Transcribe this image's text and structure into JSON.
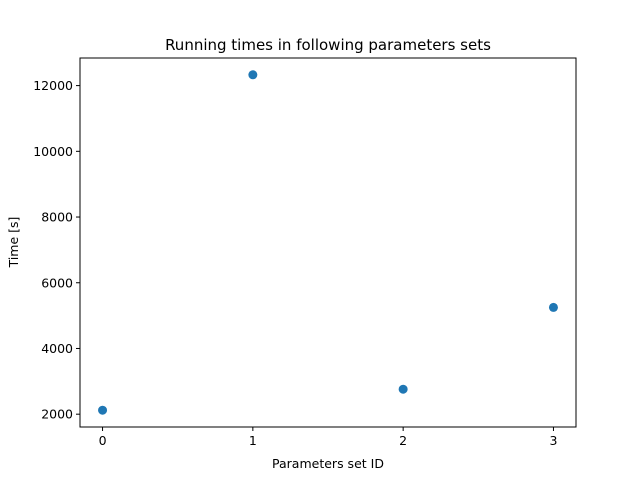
{
  "chart_data": {
    "type": "scatter",
    "title": "Running times in following parameters sets",
    "xlabel": "Parameters set ID",
    "ylabel": "Time [s]",
    "x": [
      0,
      1,
      2,
      3
    ],
    "y": [
      2120,
      12330,
      2760,
      5250
    ],
    "xlim": [
      -0.15,
      3.15
    ],
    "ylim": [
      1610,
      12840
    ],
    "xticks": [
      0,
      1,
      2,
      3
    ],
    "yticks": [
      2000,
      4000,
      6000,
      8000,
      10000,
      12000
    ],
    "grid": false,
    "marker_color": "#1f77b4"
  }
}
